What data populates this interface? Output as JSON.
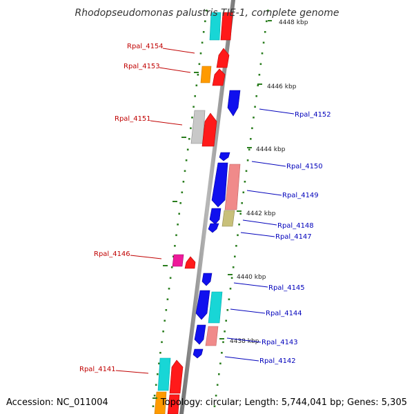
{
  "title": "Rhodopseudomonas palustris TIE-1, complete genome",
  "accession": "Accession: NC_011004",
  "topology": "Topology: circular; Length: 5,744,041 bp; Genes: 5,305",
  "colors": {
    "label_left": "#c00000",
    "label_right": "#0000bb",
    "tick": "#2a7d1e",
    "backbone": "#8a8a8a"
  },
  "ticks": [
    {
      "label": "4448 kbp"
    },
    {
      "label": "4446 kbp"
    },
    {
      "label": "4444 kbp"
    },
    {
      "label": "4442 kbp"
    },
    {
      "label": "4440 kbp"
    },
    {
      "label": "4438 kbp"
    }
  ],
  "gene_labels": [
    {
      "text": "Rpal_4154",
      "side": "left"
    },
    {
      "text": "Rpal_4153",
      "side": "left"
    },
    {
      "text": "Rpal_4151",
      "side": "left"
    },
    {
      "text": "Rpal_4146",
      "side": "left"
    },
    {
      "text": "Rpal_4141",
      "side": "left"
    },
    {
      "text": "Rpal_4152",
      "side": "right"
    },
    {
      "text": "Rpal_4150",
      "side": "right"
    },
    {
      "text": "Rpal_4149",
      "side": "right"
    },
    {
      "text": "Rpal_4148",
      "side": "right"
    },
    {
      "text": "Rpal_4147",
      "side": "right"
    },
    {
      "text": "Rpal_4145",
      "side": "right"
    },
    {
      "text": "Rpal_4144",
      "side": "right"
    },
    {
      "text": "Rpal_4143",
      "side": "right"
    },
    {
      "text": "Rpal_4142",
      "side": "right"
    }
  ]
}
